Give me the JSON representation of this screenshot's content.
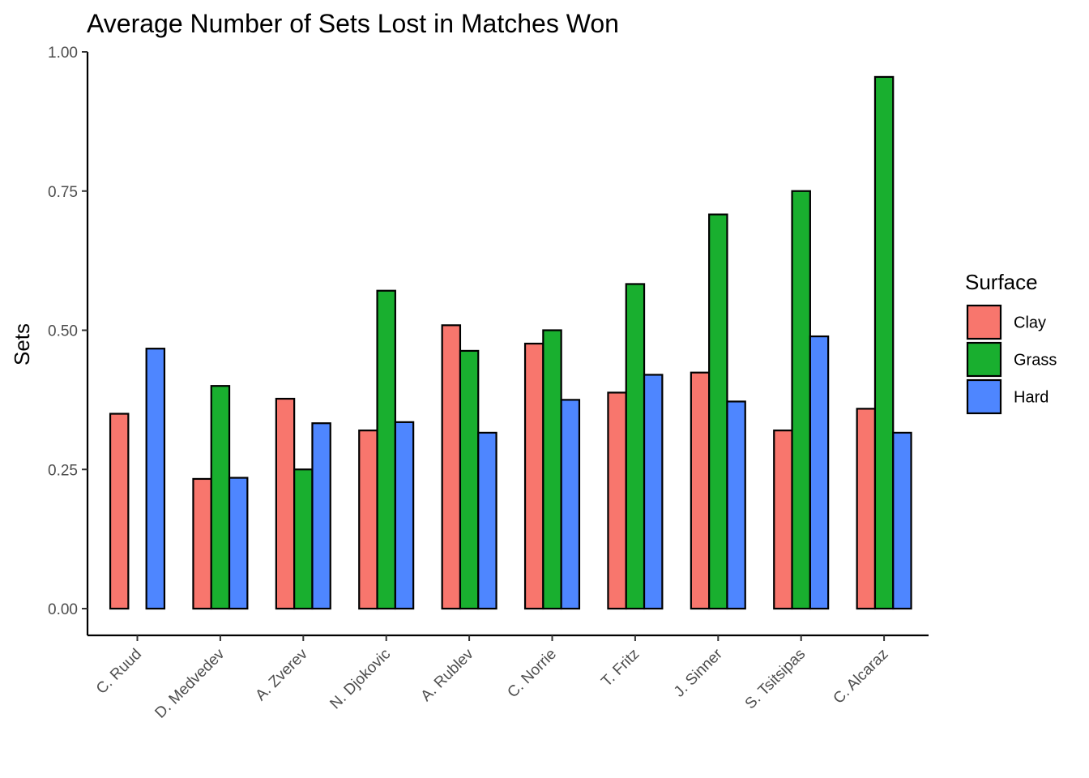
{
  "chart_data": {
    "type": "bar",
    "title": "Average Number of Sets Lost in Matches Won",
    "xlabel": "",
    "ylabel": "Sets",
    "ylim": [
      0,
      1.0
    ],
    "yticks": [
      "0.00",
      "0.25",
      "0.50",
      "0.75",
      "1.00"
    ],
    "categories": [
      "C. Ruud",
      "D. Medvedev",
      "A. Zverev",
      "N. Djokovic",
      "A. Rublev",
      "C. Norrie",
      "T. Fritz",
      "J. Sinner",
      "S. Tsitsipas",
      "C. Alcaraz"
    ],
    "series": [
      {
        "name": "Clay",
        "color": "#F8766D",
        "values": [
          0.35,
          0.233,
          0.377,
          0.32,
          0.509,
          0.476,
          0.388,
          0.424,
          0.32,
          0.359
        ]
      },
      {
        "name": "Grass",
        "color": "#19AF2F",
        "values": [
          0.0,
          0.4,
          0.25,
          0.571,
          0.463,
          0.5,
          0.583,
          0.708,
          0.75,
          0.955
        ]
      },
      {
        "name": "Hard",
        "color": "#4E86FF",
        "values": [
          0.467,
          0.235,
          0.333,
          0.335,
          0.316,
          0.375,
          0.42,
          0.372,
          0.489,
          0.316
        ]
      }
    ],
    "grid": false,
    "legend": {
      "title": "Surface",
      "position": "right"
    }
  }
}
